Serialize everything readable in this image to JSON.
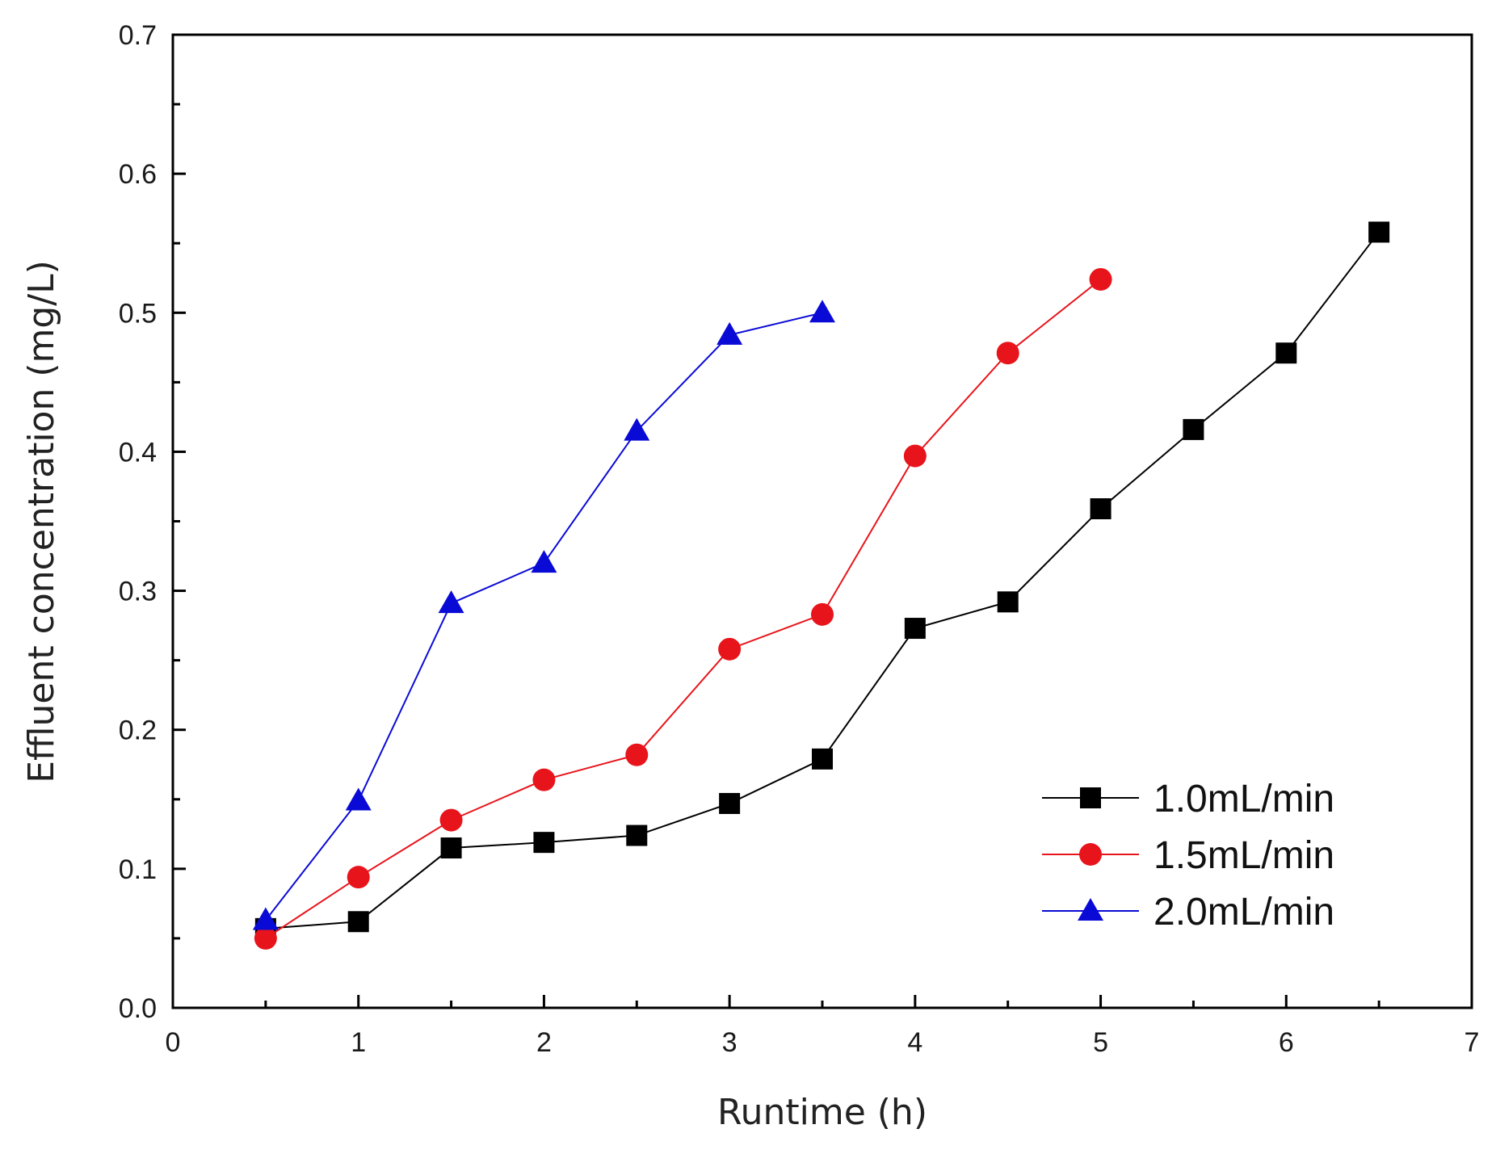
{
  "chart_data": {
    "type": "line",
    "title": "",
    "xlabel": "Runtime (h)",
    "ylabel": "Effluent concentration (mg/L)",
    "xlim": [
      0,
      7
    ],
    "ylim": [
      0,
      0.7
    ],
    "xticks": [
      "0",
      "1",
      "2",
      "3",
      "4",
      "5",
      "6",
      "7"
    ],
    "yticks": [
      "0.0",
      "0.1",
      "0.2",
      "0.3",
      "0.4",
      "0.5",
      "0.6",
      "0.7"
    ],
    "grid": false,
    "legend_position": "bottom-right",
    "series": [
      {
        "name": "1.0mL/min",
        "color": "#000000",
        "marker": "square",
        "x": [
          0.5,
          1.0,
          1.5,
          2.0,
          2.5,
          3.0,
          3.5,
          4.0,
          4.5,
          5.0,
          5.5,
          6.0,
          6.5
        ],
        "values": [
          0.057,
          0.062,
          0.115,
          0.119,
          0.124,
          0.147,
          0.179,
          0.273,
          0.292,
          0.359,
          0.416,
          0.471,
          0.558
        ]
      },
      {
        "name": "1.5mL/min",
        "color": "#e8141b",
        "marker": "circle",
        "x": [
          0.5,
          1.0,
          1.5,
          2.0,
          2.5,
          3.0,
          3.5,
          4.0,
          4.5,
          5.0
        ],
        "values": [
          0.05,
          0.094,
          0.135,
          0.164,
          0.182,
          0.258,
          0.283,
          0.397,
          0.471,
          0.524
        ]
      },
      {
        "name": "2.0mL/min",
        "color": "#0a0ad6",
        "marker": "triangle",
        "x": [
          0.5,
          1.0,
          1.5,
          2.0,
          2.5,
          3.0,
          3.5
        ],
        "values": [
          0.063,
          0.149,
          0.291,
          0.32,
          0.415,
          0.484,
          0.5
        ]
      }
    ]
  }
}
